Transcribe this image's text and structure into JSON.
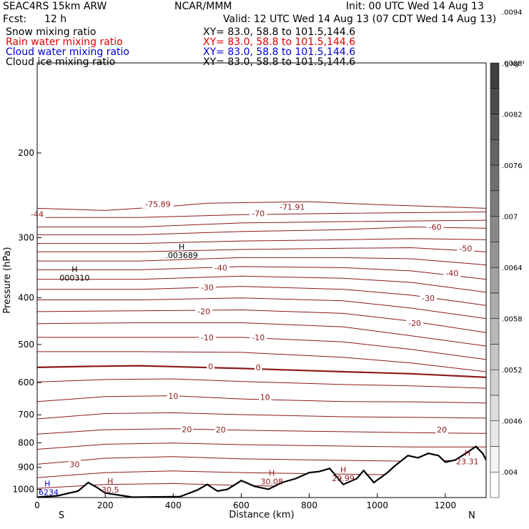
{
  "header": {
    "model": "SEAC4RS 15km ARW",
    "center": "NCAR/MMM",
    "init": "Init: 00 UTC Wed 14 Aug 13",
    "fcst_label": "Fcst:",
    "fcst_value": "12 h",
    "valid": "Valid: 12 UTC Wed 14 Aug 13 (07 CDT Wed 14 Aug 13)"
  },
  "fields": [
    {
      "name": "Snow mixing ratio",
      "xy": "XY=   83.0, 58.8 to 101.5,144.6",
      "color": "#000000"
    },
    {
      "name": "Rain water mixing ratio",
      "xy": "XY=   83.0, 58.8 to 101.5,144.6",
      "color": "#e00000"
    },
    {
      "name": "Cloud water mixing ratio",
      "xy": "XY=   83.0, 58.8 to 101.5,144.6",
      "color": "#0000cc"
    },
    {
      "name": "Cloud ice mixing ratio",
      "xy": "XY=   83.0, 58.8 to 101.5,144.6",
      "color": "#000000"
    }
  ],
  "chart_data": {
    "type": "cross-section",
    "xlabel": "Distance (km)",
    "ylabel": "Pressure (hPa)",
    "x_range": [
      0,
      1320
    ],
    "y_range": [
      1040,
      130
    ],
    "y_scale": "log",
    "x_ticks": [
      0,
      200,
      400,
      600,
      800,
      1000,
      1200
    ],
    "y_ticks": [
      200,
      300,
      400,
      500,
      600,
      700,
      800,
      900,
      1000
    ],
    "x_end_labels": {
      "left": "S",
      "right": "N"
    },
    "colorbar": {
      "unit": "g kg⁻¹",
      "ticks": [
        ".004",
        ".0046",
        ".0052",
        ".0058",
        ".0064",
        ".007",
        ".0076",
        ".0082",
        ".0088",
        ".0094"
      ],
      "bands": [
        "#ffffff",
        "#f4f4f4",
        "#e8e8e8",
        "#dcdcdc",
        "#d0d0d0",
        "#c4c4c4",
        "#b8b8b8",
        "#acacac",
        "#a0a0a0",
        "#949494",
        "#888888",
        "#7c7c7c",
        "#707070",
        "#646464",
        "#585858",
        "#4c4c4c",
        "#404040"
      ]
    },
    "contour_color": "#8b1a1a",
    "isotherms": [
      {
        "v": -75,
        "pts": [
          [
            0,
            145
          ],
          [
            200,
            148
          ],
          [
            400,
            142
          ],
          [
            500,
            138
          ],
          [
            800,
            136
          ],
          [
            1000,
            140
          ],
          [
            1320,
            145
          ]
        ]
      },
      {
        "v": -70,
        "pts": [
          [
            0,
            158
          ],
          [
            300,
            158
          ],
          [
            600,
            154
          ],
          [
            900,
            152
          ],
          [
            1320,
            150
          ]
        ]
      },
      {
        "v": -65,
        "pts": [
          [
            0,
            172
          ],
          [
            300,
            172
          ],
          [
            600,
            166
          ],
          [
            900,
            164
          ],
          [
            1320,
            162
          ]
        ]
      },
      {
        "v": -60,
        "pts": [
          [
            0,
            184
          ],
          [
            300,
            184
          ],
          [
            600,
            179
          ],
          [
            900,
            176
          ],
          [
            1100,
            172
          ],
          [
            1320,
            174
          ]
        ]
      },
      {
        "v": -55,
        "pts": [
          [
            0,
            198
          ],
          [
            300,
            198
          ],
          [
            600,
            194
          ],
          [
            900,
            192
          ],
          [
            1100,
            190
          ],
          [
            1320,
            192
          ]
        ]
      },
      {
        "v": -50,
        "pts": [
          [
            0,
            212
          ],
          [
            300,
            212
          ],
          [
            600,
            208
          ],
          [
            900,
            206
          ],
          [
            1100,
            205
          ],
          [
            1320,
            212
          ]
        ]
      },
      {
        "v": -45,
        "pts": [
          [
            0,
            228
          ],
          [
            300,
            228
          ],
          [
            600,
            222
          ],
          [
            900,
            222
          ],
          [
            1100,
            224
          ],
          [
            1320,
            235
          ]
        ]
      },
      {
        "v": -40,
        "pts": [
          [
            0,
            244
          ],
          [
            300,
            244
          ],
          [
            600,
            238
          ],
          [
            900,
            240
          ],
          [
            1100,
            246
          ],
          [
            1320,
            262
          ]
        ]
      },
      {
        "v": -35,
        "pts": [
          [
            0,
            262
          ],
          [
            300,
            262
          ],
          [
            600,
            256
          ],
          [
            900,
            260
          ],
          [
            1100,
            268
          ],
          [
            1320,
            288
          ]
        ]
      },
      {
        "v": -30,
        "pts": [
          [
            0,
            282
          ],
          [
            300,
            282
          ],
          [
            600,
            276
          ],
          [
            900,
            282
          ],
          [
            1100,
            294
          ],
          [
            1320,
            316
          ]
        ]
      },
      {
        "v": -25,
        "pts": [
          [
            0,
            304
          ],
          [
            300,
            304
          ],
          [
            600,
            300
          ],
          [
            900,
            306
          ],
          [
            1100,
            322
          ],
          [
            1320,
            346
          ]
        ]
      },
      {
        "v": -20,
        "pts": [
          [
            0,
            330
          ],
          [
            300,
            328
          ],
          [
            600,
            326
          ],
          [
            900,
            334
          ],
          [
            1100,
            352
          ],
          [
            1320,
            380
          ]
        ]
      },
      {
        "v": -15,
        "pts": [
          [
            0,
            358
          ],
          [
            300,
            356
          ],
          [
            600,
            356
          ],
          [
            900,
            366
          ],
          [
            1100,
            388
          ],
          [
            1320,
            415
          ]
        ]
      },
      {
        "v": -10,
        "pts": [
          [
            0,
            392
          ],
          [
            300,
            392
          ],
          [
            600,
            392
          ],
          [
            900,
            404
          ],
          [
            1100,
            424
          ],
          [
            1320,
            452
          ]
        ]
      },
      {
        "v": -5,
        "pts": [
          [
            0,
            430
          ],
          [
            300,
            430
          ],
          [
            600,
            432
          ],
          [
            900,
            446
          ],
          [
            1100,
            462
          ],
          [
            1320,
            488
          ]
        ]
      },
      {
        "v": 0,
        "pts": [
          [
            0,
            475
          ],
          [
            150,
            472
          ],
          [
            300,
            470
          ],
          [
            600,
            478
          ],
          [
            900,
            488
          ],
          [
            1100,
            494
          ],
          [
            1320,
            505
          ]
        ]
      },
      {
        "v": 5,
        "pts": [
          [
            0,
            520
          ],
          [
            200,
            512
          ],
          [
            400,
            510
          ],
          [
            600,
            518
          ],
          [
            900,
            528
          ],
          [
            1100,
            532
          ],
          [
            1320,
            540
          ]
        ]
      },
      {
        "v": 10,
        "pts": [
          [
            0,
            585
          ],
          [
            200,
            568
          ],
          [
            400,
            565
          ],
          [
            600,
            576
          ],
          [
            900,
            585
          ],
          [
            1100,
            586
          ],
          [
            1320,
            590
          ]
        ]
      },
      {
        "v": 15,
        "pts": [
          [
            0,
            648
          ],
          [
            200,
            628
          ],
          [
            400,
            625
          ],
          [
            600,
            632
          ],
          [
            900,
            640
          ],
          [
            1100,
            642
          ],
          [
            1320,
            645
          ]
        ]
      },
      {
        "v": 20,
        "pts": [
          [
            0,
            708
          ],
          [
            200,
            690
          ],
          [
            400,
            686
          ],
          [
            600,
            692
          ],
          [
            900,
            698
          ],
          [
            1100,
            702
          ],
          [
            1320,
            705
          ]
        ]
      },
      {
        "v": 25,
        "pts": [
          [
            0,
            772
          ],
          [
            200,
            750
          ],
          [
            400,
            745
          ],
          [
            600,
            752
          ],
          [
            900,
            758
          ],
          [
            1100,
            762
          ],
          [
            1320,
            762
          ]
        ]
      },
      {
        "v": 30,
        "pts": [
          [
            0,
            840
          ],
          [
            200,
            812
          ],
          [
            400,
            805
          ],
          [
            600,
            815
          ],
          [
            900,
            822
          ],
          [
            1100,
            826
          ],
          [
            1320,
            820
          ]
        ]
      },
      {
        "v": 35,
        "pts": [
          [
            0,
            905
          ],
          [
            200,
            880
          ],
          [
            400,
            872
          ],
          [
            600,
            880
          ],
          [
            900,
            888
          ],
          [
            1100,
            892
          ],
          [
            1320,
            888
          ]
        ]
      },
      {
        "v": 40,
        "pts": [
          [
            0,
            960
          ],
          [
            200,
            940
          ],
          [
            400,
            935
          ],
          [
            600,
            945
          ],
          [
            900,
            955
          ],
          [
            1100,
            960
          ],
          [
            1320,
            950
          ]
        ]
      }
    ],
    "terrain": [
      [
        0,
        1008
      ],
      [
        60,
        1000
      ],
      [
        120,
        975
      ],
      [
        150,
        930
      ],
      [
        175,
        955
      ],
      [
        200,
        985
      ],
      [
        280,
        1008
      ],
      [
        420,
        1005
      ],
      [
        470,
        970
      ],
      [
        500,
        940
      ],
      [
        530,
        975
      ],
      [
        560,
        965
      ],
      [
        600,
        920
      ],
      [
        640,
        950
      ],
      [
        680,
        965
      ],
      [
        720,
        930
      ],
      [
        760,
        910
      ],
      [
        800,
        880
      ],
      [
        830,
        875
      ],
      [
        860,
        860
      ],
      [
        880,
        900
      ],
      [
        900,
        940
      ],
      [
        940,
        910
      ],
      [
        960,
        870
      ],
      [
        990,
        930
      ],
      [
        1030,
        880
      ],
      [
        1050,
        850
      ],
      [
        1090,
        800
      ],
      [
        1120,
        810
      ],
      [
        1150,
        790
      ],
      [
        1180,
        800
      ],
      [
        1200,
        830
      ],
      [
        1230,
        820
      ],
      [
        1260,
        790
      ],
      [
        1290,
        760
      ],
      [
        1310,
        790
      ],
      [
        1320,
        820
      ]
    ],
    "contour_labels": [
      {
        "text": "-75.89",
        "x": 355,
        "y": 139,
        "c": "#8b1a1a"
      },
      {
        "text": "-71.91",
        "x": 750,
        "y": 143,
        "c": "#8b1a1a"
      },
      {
        "text": "-70",
        "x": 650,
        "y": 152,
        "c": "#8b1a1a"
      },
      {
        "text": "-60",
        "x": 1170,
        "y": 172,
        "c": "#8b1a1a"
      },
      {
        "text": "-50",
        "x": 1260,
        "y": 206,
        "c": "#8b1a1a"
      },
      {
        "text": "-40",
        "x": 540,
        "y": 240,
        "c": "#8b1a1a"
      },
      {
        "text": "-40",
        "x": 1220,
        "y": 250,
        "c": "#8b1a1a"
      },
      {
        "text": "-30",
        "x": 500,
        "y": 278,
        "c": "#8b1a1a"
      },
      {
        "text": "-30",
        "x": 1150,
        "y": 300,
        "c": "#8b1a1a"
      },
      {
        "text": "-20",
        "x": 490,
        "y": 329,
        "c": "#8b1a1a"
      },
      {
        "text": "-20",
        "x": 1110,
        "y": 357,
        "c": "#8b1a1a"
      },
      {
        "text": "-10",
        "x": 500,
        "y": 392,
        "c": "#8b1a1a"
      },
      {
        "text": "-10",
        "x": 650,
        "y": 392,
        "c": "#8b1a1a"
      },
      {
        "text": "0",
        "x": 510,
        "y": 472,
        "c": "#8b1a1a"
      },
      {
        "text": "0",
        "x": 650,
        "y": 475,
        "c": "#8b1a1a"
      },
      {
        "text": "10",
        "x": 400,
        "y": 566,
        "c": "#8b1a1a"
      },
      {
        "text": "10",
        "x": 670,
        "y": 570,
        "c": "#8b1a1a"
      },
      {
        "text": "20",
        "x": 440,
        "y": 688,
        "c": "#8b1a1a"
      },
      {
        "text": "20",
        "x": 540,
        "y": 690,
        "c": "#8b1a1a"
      },
      {
        "text": "20",
        "x": 1190,
        "y": 690,
        "c": "#8b1a1a"
      },
      {
        "text": "30",
        "x": 110,
        "y": 840,
        "c": "#8b1a1a"
      },
      {
        "text": "-44",
        "x": 0,
        "y": 153,
        "c": "#8b1a1a"
      }
    ],
    "hl_labels": [
      {
        "h": "H",
        "val": "000310",
        "x": 110,
        "y": 248,
        "c": "#000000"
      },
      {
        "h": "H",
        "val": ".003689",
        "x": 425,
        "y": 208,
        "c": "#000000"
      },
      {
        "h": "H",
        "val": "30.08",
        "x": 690,
        "y": 895,
        "c": "#8b1a1a"
      },
      {
        "h": "H",
        "val": "29.99",
        "x": 900,
        "y": 880,
        "c": "#8b1a1a"
      },
      {
        "h": "H",
        "val": "23.31",
        "x": 1265,
        "y": 800,
        "c": "#8b1a1a"
      },
      {
        "h": "H",
        "val": "30.5",
        "x": 215,
        "y": 938,
        "c": "#8b1a1a"
      },
      {
        "h": "H",
        "val": ".6234",
        "x": 30,
        "y": 950,
        "c": "#0000cc"
      }
    ]
  }
}
